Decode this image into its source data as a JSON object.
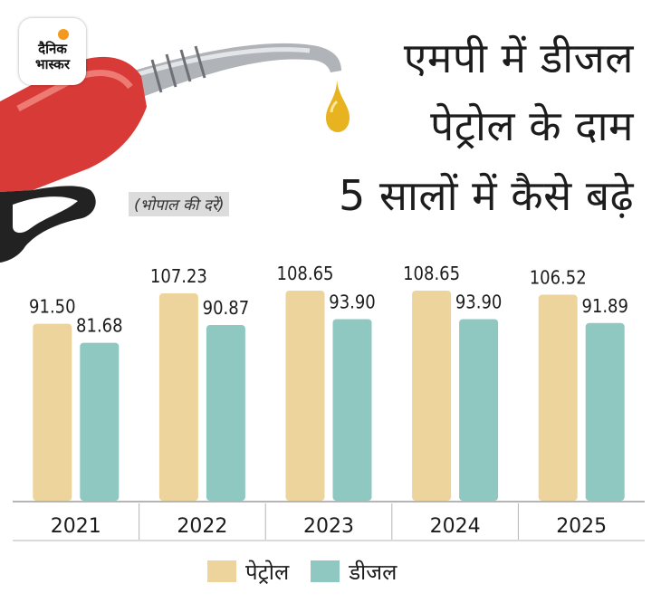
{
  "logo": {
    "text": "दैनिक\nभास्कर"
  },
  "title": [
    "एमपी में डीजल",
    "पेट्रोल के दाम",
    "5 सालों में कैसे बढ़े"
  ],
  "subtitle": "(भोपाल की दरें)",
  "colors": {
    "petrol": "#ecd49c",
    "diesel": "#8fc8c0",
    "text": "#1c1c1c",
    "axis": "#b5b5b5"
  },
  "chart_data": {
    "type": "bar",
    "title": "एमपी में डीजल पेट्रोल के दाम 5 सालों में कैसे बढ़े",
    "subtitle": "(भोपाल की दरें)",
    "categories": [
      "2021",
      "2022",
      "2023",
      "2024",
      "2025"
    ],
    "series": [
      {
        "name": "पेट्रोल",
        "values": [
          91.5,
          107.23,
          108.65,
          108.65,
          106.52
        ],
        "labels": [
          "91.50",
          "107.23",
          "108.65",
          "108.65",
          "106.52"
        ]
      },
      {
        "name": "डीजल",
        "values": [
          81.68,
          90.87,
          93.9,
          93.9,
          91.89
        ],
        "labels": [
          "81.68",
          "90.87",
          "93.90",
          "93.90",
          "91.89"
        ]
      }
    ],
    "xlabel": "",
    "ylabel": "",
    "grid": false,
    "legend": "bottom"
  }
}
